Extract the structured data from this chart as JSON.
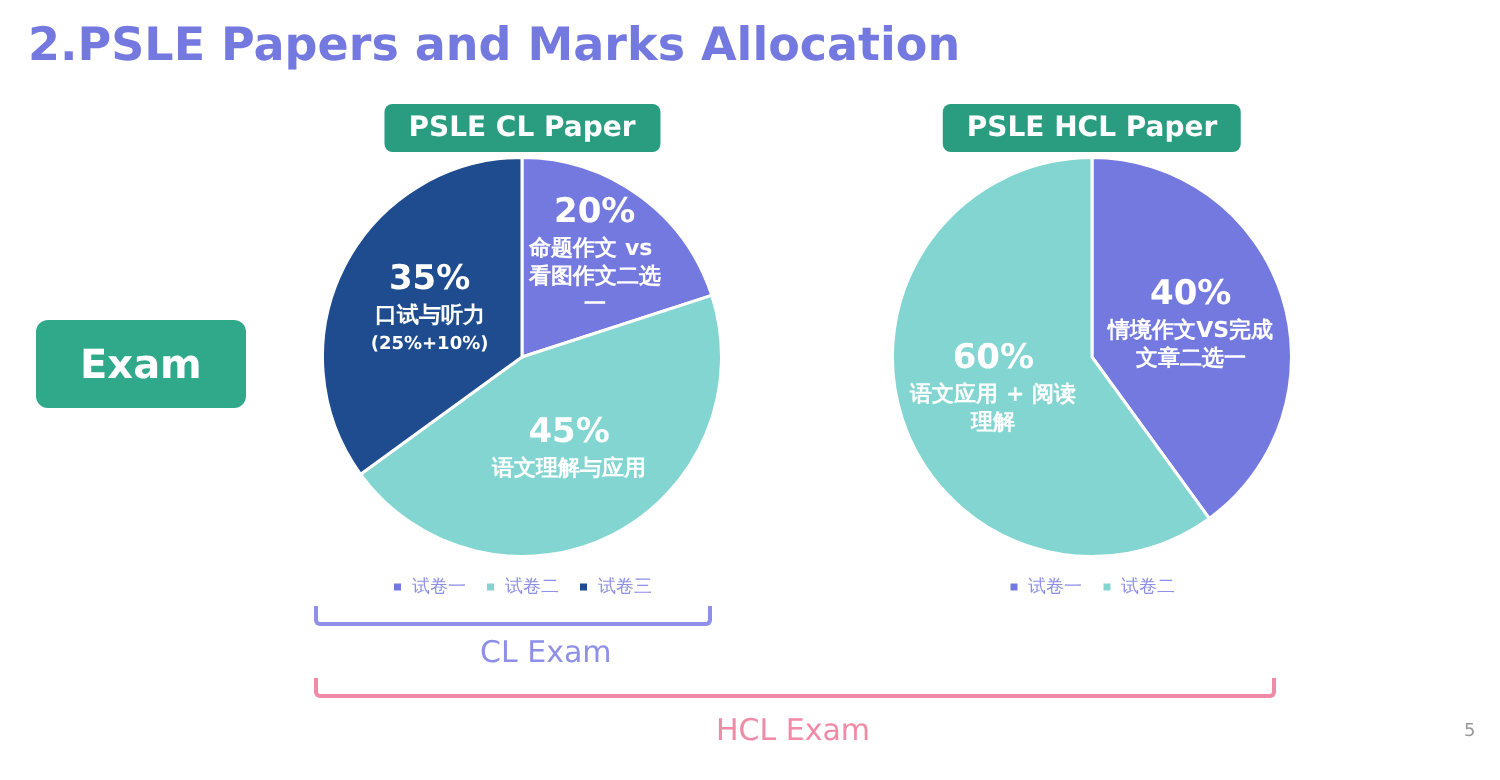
{
  "chart_data": [
    {
      "type": "other",
      "title": "2.PSLE Papers and Marks Allocation",
      "annotations": [
        "Exam",
        "CL Exam",
        "HCL Exam",
        "5"
      ]
    },
    {
      "type": "pie",
      "title": "PSLE CL Paper",
      "categories": [
        "试卷一",
        "试卷二",
        "试卷三"
      ],
      "values": [
        20,
        45,
        35
      ],
      "colors": [
        "#7479e0",
        "#82d5d0",
        "#1e4c8e"
      ],
      "legend": "bottom",
      "value_labels": [
        "20%\n命题作文 vs 看图作文二选一",
        "45%\n语文理解与应用",
        "35%\n口试与听力\n(25%+10%)"
      ]
    },
    {
      "type": "pie",
      "title": "PSLE HCL Paper",
      "categories": [
        "试卷一",
        "试卷二"
      ],
      "values": [
        40,
        60
      ],
      "colors": [
        "#7479e0",
        "#82d5d0"
      ],
      "legend": "bottom",
      "value_labels": [
        "40%\n情境作文VS完成文章二选一",
        "60%\n语文应用 + 阅读理解"
      ]
    }
  ]
}
